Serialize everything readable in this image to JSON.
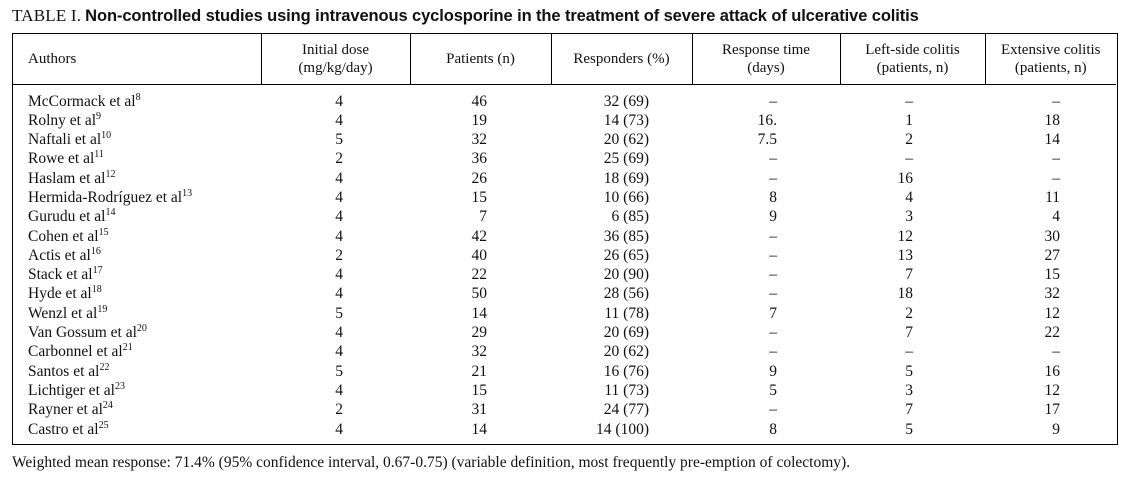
{
  "title": {
    "label": "TABLE I.",
    "text": "Non-controlled studies using intravenous cyclosporine in the treatment of severe attack of ulcerative colitis"
  },
  "table": {
    "columns": [
      {
        "id": "authors",
        "label": "Authors",
        "sub": ""
      },
      {
        "id": "dose",
        "label": "Initial dose",
        "sub": "(mg/kg/day)"
      },
      {
        "id": "patients",
        "label": "Patients (n)",
        "sub": ""
      },
      {
        "id": "responders",
        "label": "Responders (%)",
        "sub": ""
      },
      {
        "id": "response_time",
        "label": "Response time",
        "sub": "(days)"
      },
      {
        "id": "left_side",
        "label": "Left-side colitis",
        "sub": "(patients, n)"
      },
      {
        "id": "extensive",
        "label": "Extensive colitis",
        "sub": "(patients, n)"
      }
    ],
    "rows": [
      {
        "author": "McCormack et al",
        "ref": "8",
        "dose": "4",
        "patients": "46",
        "responders": "32 (69)",
        "response_time": "–",
        "left_side": "–",
        "extensive": "–"
      },
      {
        "author": "Rolny et al",
        "ref": "9",
        "dose": "4",
        "patients": "19",
        "responders": "14 (73)",
        "response_time": "16.",
        "left_side": "1",
        "extensive": "18"
      },
      {
        "author": "Naftali et al",
        "ref": "10",
        "dose": "5",
        "patients": "32",
        "responders": "20 (62)",
        "response_time": "7.5",
        "left_side": "2",
        "extensive": "14"
      },
      {
        "author": "Rowe et al",
        "ref": "11",
        "dose": "2",
        "patients": "36",
        "responders": "25 (69)",
        "response_time": "–",
        "left_side": "–",
        "extensive": "–"
      },
      {
        "author": "Haslam et al",
        "ref": "12",
        "dose": "4",
        "patients": "26",
        "responders": "18 (69)",
        "response_time": "–",
        "left_side": "16",
        "extensive": "–"
      },
      {
        "author": "Hermida-Rodríguez et al",
        "ref": "13",
        "dose": "4",
        "patients": "15",
        "responders": "10 (66)",
        "response_time": "8",
        "left_side": "4",
        "extensive": "11"
      },
      {
        "author": "Gurudu et al",
        "ref": "14",
        "dose": "4",
        "patients": "7",
        "responders": "6 (85)",
        "response_time": "9",
        "left_side": "3",
        "extensive": "4"
      },
      {
        "author": "Cohen et al",
        "ref": "15",
        "dose": "4",
        "patients": "42",
        "responders": "36 (85)",
        "response_time": "–",
        "left_side": "12",
        "extensive": "30"
      },
      {
        "author": "Actis et al",
        "ref": "16",
        "dose": "2",
        "patients": "40",
        "responders": "26 (65)",
        "response_time": "–",
        "left_side": "13",
        "extensive": "27"
      },
      {
        "author": "Stack et al",
        "ref": "17",
        "dose": "4",
        "patients": "22",
        "responders": "20 (90)",
        "response_time": "–",
        "left_side": "7",
        "extensive": "15"
      },
      {
        "author": "Hyde et al",
        "ref": "18",
        "dose": "4",
        "patients": "50",
        "responders": "28 (56)",
        "response_time": "–",
        "left_side": "18",
        "extensive": "32"
      },
      {
        "author": "Wenzl et al",
        "ref": "19",
        "dose": "5",
        "patients": "14",
        "responders": "11 (78)",
        "response_time": "7",
        "left_side": "2",
        "extensive": "12"
      },
      {
        "author": "Van Gossum et al",
        "ref": "20",
        "dose": "4",
        "patients": "29",
        "responders": "20 (69)",
        "response_time": "–",
        "left_side": "7",
        "extensive": "22"
      },
      {
        "author": "Carbonnel et al",
        "ref": "21",
        "dose": "4",
        "patients": "32",
        "responders": "20 (62)",
        "response_time": "–",
        "left_side": "–",
        "extensive": "–"
      },
      {
        "author": "Santos et al",
        "ref": "22",
        "dose": "5",
        "patients": "21",
        "responders": "16 (76)",
        "response_time": "9",
        "left_side": "5",
        "extensive": "16"
      },
      {
        "author": "Lichtiger et al",
        "ref": "23",
        "dose": "4",
        "patients": "15",
        "responders": "11 (73)",
        "response_time": "5",
        "left_side": "3",
        "extensive": "12"
      },
      {
        "author": "Rayner et al",
        "ref": "24",
        "dose": "2",
        "patients": "31",
        "responders": "24 (77)",
        "response_time": "–",
        "left_side": "7",
        "extensive": "17"
      },
      {
        "author": "Castro et al",
        "ref": "25",
        "dose": "4",
        "patients": "14",
        "responders": "14 (100)",
        "response_time": "8",
        "left_side": "5",
        "extensive": "9"
      }
    ]
  },
  "footnote": "Weighted mean response: 71.4% (95% confidence interval, 0.67-0.75) (variable definition, most frequently pre-emption of colectomy)."
}
